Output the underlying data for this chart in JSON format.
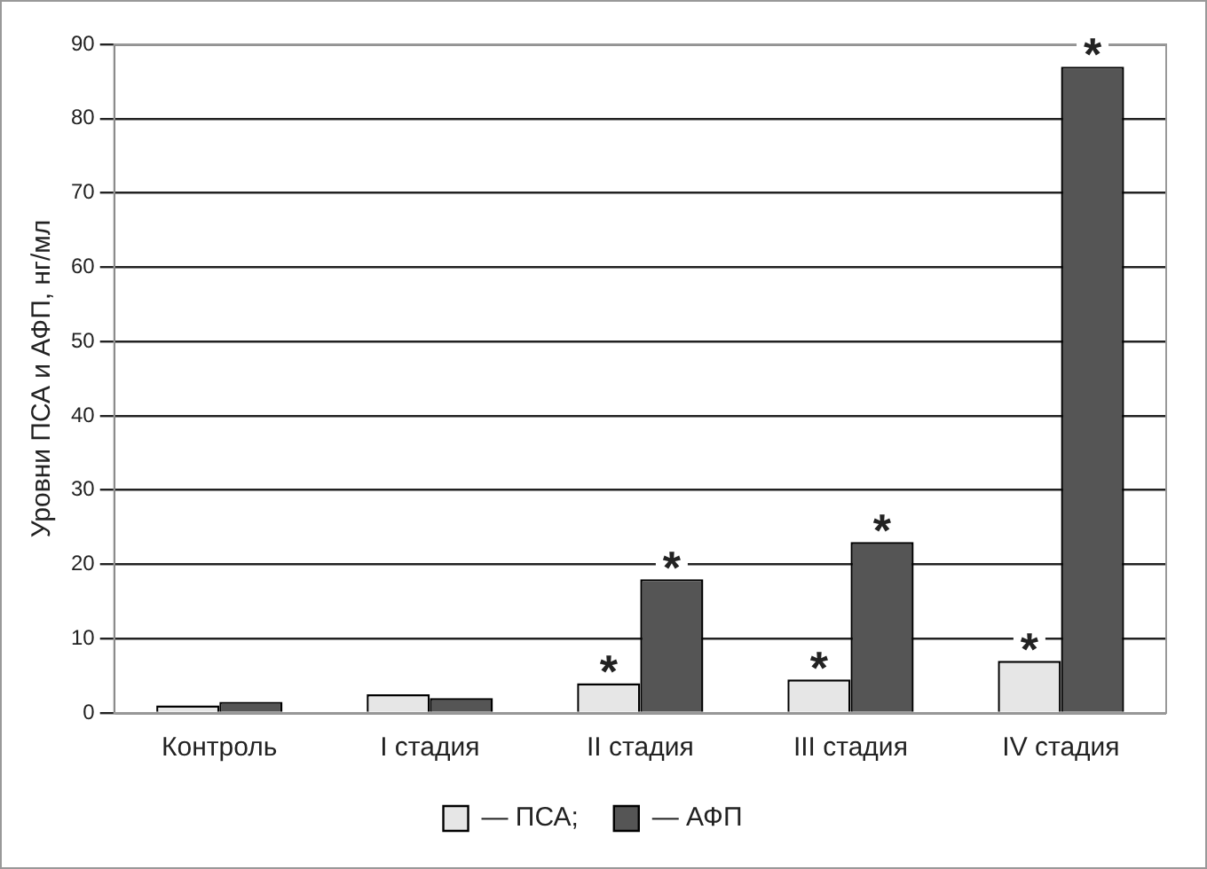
{
  "chart_data": {
    "type": "bar",
    "ylabel": "Уровни ПСА и АФП, нг/мл",
    "categories": [
      "Контроль",
      "I стадия",
      "II стадия",
      "III стадия",
      "IV стадия"
    ],
    "series": [
      {
        "name": "— ПСА;",
        "color": "#e6e6e6",
        "values": [
          1,
          2.5,
          4,
          4.5,
          7
        ]
      },
      {
        "name": "— АФП",
        "color": "#555555",
        "values": [
          1.5,
          2,
          18,
          23,
          87
        ]
      }
    ],
    "ylim": [
      0,
      90
    ],
    "yticks": [
      0,
      10,
      20,
      30,
      40,
      50,
      60,
      70,
      80,
      90
    ],
    "grid": "y",
    "legend": "bottom",
    "annotations": [
      {
        "text": "*",
        "x": "II стадия",
        "y": 4
      },
      {
        "text": "*",
        "x": "II стадия",
        "y": 18
      },
      {
        "text": "*",
        "x": "III стадия",
        "y": 4.5
      },
      {
        "text": "*",
        "x": "III стадия",
        "y": 23
      },
      {
        "text": "*",
        "x": "IV стадия",
        "y": 7
      },
      {
        "text": "*",
        "x": "IV стадия",
        "y": 87
      }
    ]
  }
}
